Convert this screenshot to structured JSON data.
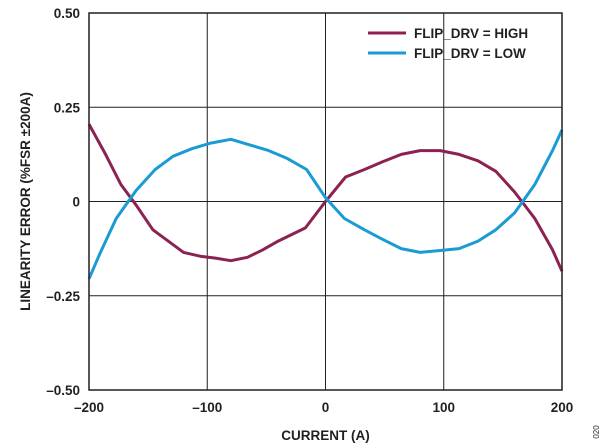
{
  "chart_data": {
    "type": "line",
    "title": "",
    "xlabel": "CURRENT (A)",
    "ylabel": "LINEARITY ERROR (%FSR ±200A)",
    "xlim": [
      -200,
      200
    ],
    "ylim": [
      -0.5,
      0.5
    ],
    "x_ticks": [
      -200,
      -100,
      0,
      100,
      200
    ],
    "x_tick_labels": [
      "–200",
      "–100",
      "0",
      "100",
      "200"
    ],
    "y_ticks": [
      0.5,
      0.25,
      0,
      -0.25,
      -0.5
    ],
    "y_tick_labels": [
      "0.50",
      "0.25",
      "0",
      "–0.25",
      "–0.50"
    ],
    "grid": true,
    "legend_position": "top-right",
    "figure_id": "020",
    "series": [
      {
        "name": "FLIP_DRV = HIGH",
        "color": "#8b2252",
        "x": [
          -200,
          -186,
          -173,
          -160,
          -146,
          -133,
          -120,
          -106,
          -93,
          -80,
          -66,
          -53,
          -40,
          -17,
          0,
          17,
          33,
          48,
          64,
          80,
          97,
          113,
          129,
          144,
          160,
          177,
          192,
          200
        ],
        "y": [
          0.205,
          0.125,
          0.045,
          -0.01,
          -0.075,
          -0.105,
          -0.135,
          -0.145,
          -0.15,
          -0.157,
          -0.148,
          -0.128,
          -0.105,
          -0.07,
          0.0,
          0.065,
          0.085,
          0.105,
          0.125,
          0.135,
          0.135,
          0.125,
          0.108,
          0.08,
          0.025,
          -0.045,
          -0.128,
          -0.185
        ]
      },
      {
        "name": "FLIP_DRV = LOW",
        "color": "#1a9bd4",
        "x": [
          -200,
          -191,
          -177,
          -160,
          -144,
          -129,
          -113,
          -97,
          -80,
          -64,
          -48,
          -33,
          -16,
          0,
          16,
          33,
          48,
          64,
          80,
          97,
          113,
          129,
          144,
          160,
          177,
          192,
          200
        ],
        "y": [
          -0.205,
          -0.14,
          -0.045,
          0.03,
          0.085,
          0.12,
          0.14,
          0.155,
          0.165,
          0.15,
          0.135,
          0.115,
          0.085,
          0.01,
          -0.045,
          -0.075,
          -0.1,
          -0.125,
          -0.135,
          -0.13,
          -0.125,
          -0.105,
          -0.075,
          -0.03,
          0.045,
          0.135,
          0.19
        ]
      }
    ]
  }
}
